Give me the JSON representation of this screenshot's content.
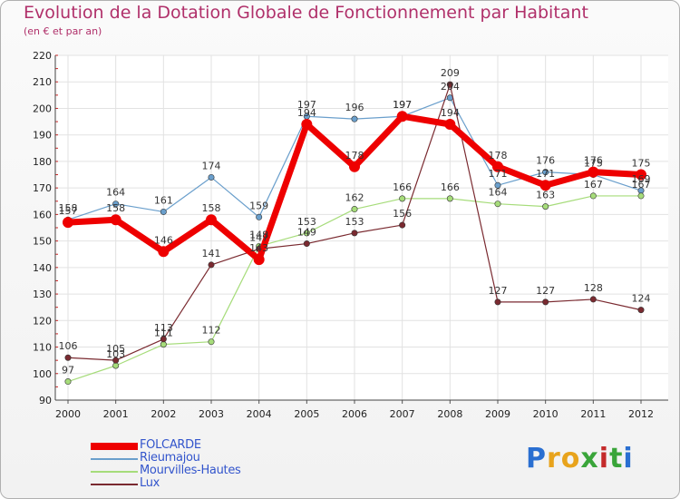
{
  "title": "Evolution de la Dotation Globale de Fonctionnement par Habitant",
  "subtitle": "(en € et par an)",
  "logo": {
    "text": "Proxiti",
    "letters": [
      "P",
      "r",
      "o",
      "x",
      "i",
      "t",
      "i"
    ],
    "colors": [
      "#2a6fd1",
      "#e8a31c",
      "#e8a31c",
      "#3aa53a",
      "#c42a2a",
      "#3aa53a",
      "#2a6fd1"
    ]
  },
  "chart_data": {
    "type": "line",
    "title": "Evolution de la Dotation Globale de Fonctionnement par Habitant",
    "subtitle": "(en € et par an)",
    "xlabel": "",
    "ylabel": "",
    "x": [
      "2000",
      "2001",
      "2002",
      "2003",
      "2004",
      "2005",
      "2006",
      "2007",
      "2008",
      "2009",
      "2010",
      "2011",
      "2012"
    ],
    "ylim": [
      90,
      220
    ],
    "yticks": [
      90,
      100,
      110,
      120,
      130,
      140,
      150,
      160,
      170,
      180,
      190,
      200,
      210,
      220
    ],
    "grid": true,
    "legend_position": "bottom-left",
    "series": [
      {
        "name": "Rieumajou",
        "color": "#6a9fcc",
        "width": 1.2,
        "values": [
          158,
          164,
          161,
          174,
          159,
          197,
          196,
          197,
          204,
          171,
          176,
          175,
          169
        ],
        "labels": [
          "158",
          "164",
          "161",
          "174",
          "159",
          "197",
          "196",
          "197",
          "204",
          "171",
          "176",
          "175",
          "169"
        ]
      },
      {
        "name": "Mourvilles-Hautes",
        "color": "#a6dc7a",
        "width": 1.2,
        "values": [
          97,
          103,
          111,
          112,
          148,
          153,
          162,
          166,
          166,
          164,
          163,
          167,
          167
        ],
        "labels": [
          "97",
          "103",
          "111",
          "112",
          "148",
          "153",
          "162",
          "166",
          "166",
          "164",
          "163",
          "167",
          "167"
        ]
      },
      {
        "name": "Lux",
        "color": "#7a2a30",
        "width": 1.2,
        "values": [
          106,
          105,
          113,
          141,
          147,
          149,
          153,
          156,
          209,
          127,
          127,
          128,
          124
        ],
        "labels": [
          "106",
          "105",
          "113",
          "141",
          "147",
          "149",
          "153",
          "156",
          "209",
          "127",
          "127",
          "128",
          "124"
        ]
      },
      {
        "name": "FOLCARDE",
        "color": "#ee0000",
        "width": 7,
        "values": [
          157,
          158,
          146,
          158,
          143,
          194,
          178,
          197,
          194,
          178,
          171,
          176,
          175
        ],
        "labels": [
          "157",
          "158",
          "146",
          "158",
          "143",
          "194",
          "178",
          "197",
          "194",
          "178",
          "171",
          "176",
          "175"
        ]
      }
    ],
    "legend": [
      "FOLCARDE",
      "Rieumajou",
      "Mourvilles-Hautes",
      "Lux"
    ]
  }
}
